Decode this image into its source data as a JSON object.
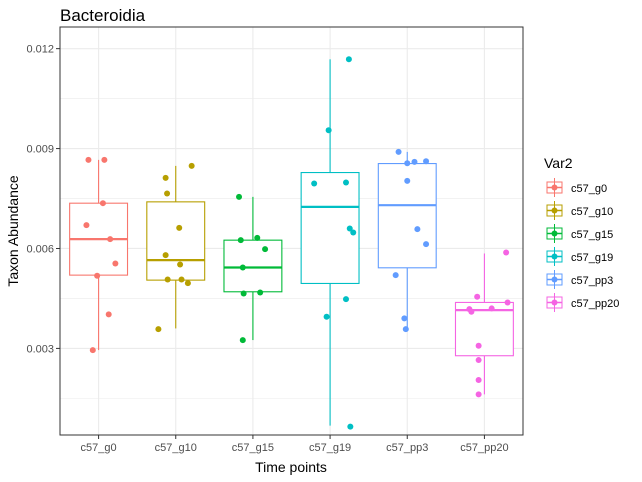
{
  "chart_data": {
    "type": "box",
    "title": "Bacteroidia",
    "xlabel": "Time points",
    "ylabel": "Taxon Abundance",
    "ylim": [
      0.0004,
      0.01265
    ],
    "y_ticks": [
      0.003,
      0.006,
      0.009,
      0.012
    ],
    "y_tick_labels": [
      "0.003",
      "0.006",
      "0.009",
      "0.012"
    ],
    "grid": true,
    "legend_title": "Var2",
    "legend_position": "right",
    "categories": [
      "c57_g0",
      "c57_g10",
      "c57_g15",
      "c57_g19",
      "c57_pp3",
      "c57_pp20"
    ],
    "series": [
      {
        "name": "c57_g0",
        "color": "#F8766D",
        "box": {
          "lower_whisker": 0.00295,
          "q1": 0.0052,
          "median": 0.00628,
          "q3": 0.00736,
          "upper_whisker": 0.00866
        },
        "points": [
          [
            -0.35,
            0.00866
          ],
          [
            0.2,
            0.00866
          ],
          [
            0.15,
            0.00736
          ],
          [
            -0.42,
            0.0067
          ],
          [
            0.4,
            0.00628
          ],
          [
            0.58,
            0.00555
          ],
          [
            -0.05,
            0.00518
          ],
          [
            0.35,
            0.00402
          ],
          [
            -0.2,
            0.00295
          ]
        ]
      },
      {
        "name": "c57_g10",
        "color": "#B79F00",
        "box": {
          "lower_whisker": 0.0036,
          "q1": 0.00505,
          "median": 0.00565,
          "q3": 0.0074,
          "upper_whisker": 0.00848
        },
        "points": [
          [
            -0.35,
            0.00812
          ],
          [
            0.55,
            0.00848
          ],
          [
            -0.3,
            0.00765
          ],
          [
            0.12,
            0.00662
          ],
          [
            -0.35,
            0.0058
          ],
          [
            0.15,
            0.00552
          ],
          [
            -0.28,
            0.00507
          ],
          [
            0.2,
            0.00507
          ],
          [
            0.42,
            0.00496
          ],
          [
            -0.6,
            0.00358
          ]
        ]
      },
      {
        "name": "c57_g15",
        "color": "#00BA38",
        "box": {
          "lower_whisker": 0.00325,
          "q1": 0.0047,
          "median": 0.00543,
          "q3": 0.00625,
          "upper_whisker": 0.00755
        },
        "points": [
          [
            -0.48,
            0.00755
          ],
          [
            0.15,
            0.00632
          ],
          [
            -0.42,
            0.00625
          ],
          [
            0.42,
            0.00598
          ],
          [
            -0.35,
            0.00543
          ],
          [
            -0.32,
            0.00465
          ],
          [
            0.25,
            0.00468
          ],
          [
            -0.35,
            0.00325
          ]
        ]
      },
      {
        "name": "c57_g19",
        "color": "#00BFC4",
        "box": {
          "lower_whisker": 0.00068,
          "q1": 0.00495,
          "median": 0.00725,
          "q3": 0.00828,
          "upper_whisker": 0.01168
        },
        "points": [
          [
            0.65,
            0.01168
          ],
          [
            -0.05,
            0.00955
          ],
          [
            -0.55,
            0.00795
          ],
          [
            0.55,
            0.00798
          ],
          [
            0.68,
            0.0066
          ],
          [
            0.8,
            0.00648
          ],
          [
            0.55,
            0.00448
          ],
          [
            -0.12,
            0.00395
          ],
          [
            0.7,
            0.00065
          ]
        ]
      },
      {
        "name": "c57_pp3",
        "color": "#619CFF",
        "box": {
          "lower_whisker": 0.00355,
          "q1": 0.00542,
          "median": 0.0073,
          "q3": 0.00855,
          "upper_whisker": 0.0089
        },
        "points": [
          [
            -0.3,
            0.0089
          ],
          [
            0.0,
            0.00856
          ],
          [
            0.25,
            0.0086
          ],
          [
            0.65,
            0.00862
          ],
          [
            0.0,
            0.00803
          ],
          [
            0.35,
            0.00658
          ],
          [
            0.65,
            0.00613
          ],
          [
            -0.4,
            0.0052
          ],
          [
            -0.1,
            0.0039
          ],
          [
            -0.05,
            0.00358
          ]
        ]
      },
      {
        "name": "c57_pp20",
        "color": "#F564E3",
        "box": {
          "lower_whisker": 0.00162,
          "q1": 0.00278,
          "median": 0.00415,
          "q3": 0.00438,
          "upper_whisker": 0.00585
        },
        "points": [
          [
            0.75,
            0.00588
          ],
          [
            -0.25,
            0.00455
          ],
          [
            0.8,
            0.00438
          ],
          [
            -0.52,
            0.00418
          ],
          [
            -0.45,
            0.0041
          ],
          [
            0.25,
            0.0042
          ],
          [
            -0.2,
            0.00308
          ],
          [
            -0.2,
            0.00265
          ],
          [
            -0.2,
            0.00205
          ],
          [
            -0.2,
            0.00162
          ]
        ]
      }
    ]
  }
}
